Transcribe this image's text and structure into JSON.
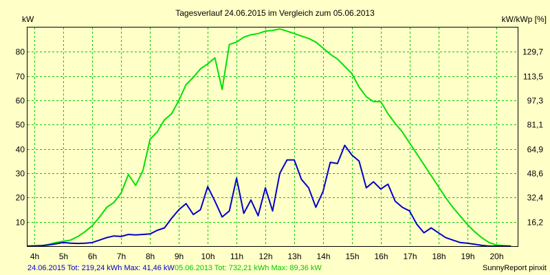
{
  "chart_data": {
    "type": "line",
    "title": "Tagesverlauf 24.06.2015 im Vergleich zum 05.06.2013",
    "ylabel_left": "kW",
    "ylabel_right": "kW/kWp [%]",
    "xlim": [
      3.75,
      20.75
    ],
    "ylim": [
      0,
      90
    ],
    "x_ticks": [
      {
        "x": 4,
        "label": "4h"
      },
      {
        "x": 5,
        "label": "5h"
      },
      {
        "x": 6,
        "label": "6h"
      },
      {
        "x": 7,
        "label": "7h"
      },
      {
        "x": 8,
        "label": "8h"
      },
      {
        "x": 9,
        "label": "9h"
      },
      {
        "x": 10,
        "label": "10h"
      },
      {
        "x": 11,
        "label": "11h"
      },
      {
        "x": 12,
        "label": "12h"
      },
      {
        "x": 13,
        "label": "13h"
      },
      {
        "x": 14,
        "label": "14h"
      },
      {
        "x": 15,
        "label": "15h"
      },
      {
        "x": 16,
        "label": "16h"
      },
      {
        "x": 17,
        "label": "17h"
      },
      {
        "x": 18,
        "label": "18h"
      },
      {
        "x": 19,
        "label": "19h"
      },
      {
        "x": 20,
        "label": "20h"
      }
    ],
    "y_ticks_left": [
      {
        "y": 10,
        "label": "10"
      },
      {
        "y": 20,
        "label": "20"
      },
      {
        "y": 30,
        "label": "30"
      },
      {
        "y": 40,
        "label": "40"
      },
      {
        "y": 50,
        "label": "50"
      },
      {
        "y": 60,
        "label": "60"
      },
      {
        "y": 70,
        "label": "70"
      },
      {
        "y": 80,
        "label": "80"
      }
    ],
    "y_ticks_right": [
      {
        "y": 10,
        "label": "16,2"
      },
      {
        "y": 20,
        "label": "32,4"
      },
      {
        "y": 30,
        "label": "48,6"
      },
      {
        "y": 40,
        "label": "64,9"
      },
      {
        "y": 50,
        "label": "81,1"
      },
      {
        "y": 60,
        "label": "97,3"
      },
      {
        "y": 70,
        "label": "113,5"
      },
      {
        "y": 80,
        "label": "129,7"
      }
    ],
    "grid": true,
    "series": [
      {
        "name": "05.06.2013",
        "color": "#00e000",
        "points": [
          [
            3.75,
            0
          ],
          [
            4.25,
            0.2
          ],
          [
            4.5,
            0.8
          ],
          [
            4.75,
            1.5
          ],
          [
            5.0,
            2
          ],
          [
            5.25,
            2.5
          ],
          [
            5.5,
            4
          ],
          [
            5.75,
            6
          ],
          [
            6.0,
            8.5
          ],
          [
            6.25,
            12
          ],
          [
            6.5,
            16
          ],
          [
            6.75,
            18
          ],
          [
            7.0,
            22
          ],
          [
            7.25,
            29.5
          ],
          [
            7.5,
            25
          ],
          [
            7.75,
            31
          ],
          [
            8.0,
            44
          ],
          [
            8.25,
            47
          ],
          [
            8.5,
            52
          ],
          [
            8.75,
            54.5
          ],
          [
            9.0,
            60
          ],
          [
            9.25,
            66.5
          ],
          [
            9.5,
            69.5
          ],
          [
            9.75,
            73
          ],
          [
            10.0,
            75
          ],
          [
            10.25,
            77.5
          ],
          [
            10.5,
            64.5
          ],
          [
            10.75,
            83
          ],
          [
            11.0,
            84
          ],
          [
            11.25,
            86
          ],
          [
            11.5,
            87
          ],
          [
            11.75,
            87.5
          ],
          [
            12.0,
            88.5
          ],
          [
            12.25,
            88.8
          ],
          [
            12.5,
            89.4
          ],
          [
            12.75,
            88.5
          ],
          [
            13.0,
            87.5
          ],
          [
            13.25,
            86.5
          ],
          [
            13.5,
            85.5
          ],
          [
            13.75,
            84
          ],
          [
            14.0,
            81.5
          ],
          [
            14.25,
            79
          ],
          [
            14.5,
            77
          ],
          [
            14.75,
            74
          ],
          [
            15.0,
            71
          ],
          [
            15.25,
            65.5
          ],
          [
            15.5,
            61.5
          ],
          [
            15.75,
            59.5
          ],
          [
            16.0,
            59.5
          ],
          [
            16.25,
            54.5
          ],
          [
            16.5,
            50.5
          ],
          [
            16.75,
            47
          ],
          [
            17.0,
            42.5
          ],
          [
            17.25,
            38
          ],
          [
            17.5,
            33.5
          ],
          [
            17.75,
            29
          ],
          [
            18.0,
            24.5
          ],
          [
            18.25,
            20
          ],
          [
            18.5,
            16
          ],
          [
            18.75,
            12.5
          ],
          [
            19.0,
            9
          ],
          [
            19.25,
            6
          ],
          [
            19.5,
            3.5
          ],
          [
            19.75,
            1.5
          ],
          [
            20.0,
            0.5
          ],
          [
            20.25,
            0.2
          ],
          [
            20.5,
            0
          ]
        ]
      },
      {
        "name": "24.06.2015",
        "color": "#0000c8",
        "points": [
          [
            3.75,
            0
          ],
          [
            4.25,
            0.2
          ],
          [
            4.5,
            0.5
          ],
          [
            4.75,
            1
          ],
          [
            5.0,
            1.5
          ],
          [
            5.25,
            1.2
          ],
          [
            5.5,
            1.1
          ],
          [
            5.75,
            1.2
          ],
          [
            6.0,
            1.5
          ],
          [
            6.25,
            2.5
          ],
          [
            6.5,
            3.5
          ],
          [
            6.75,
            4.2
          ],
          [
            7.0,
            4
          ],
          [
            7.25,
            4.8
          ],
          [
            7.5,
            4.6
          ],
          [
            7.75,
            4.8
          ],
          [
            8.0,
            5
          ],
          [
            8.25,
            6.5
          ],
          [
            8.5,
            7.5
          ],
          [
            8.75,
            11.5
          ],
          [
            9.0,
            15
          ],
          [
            9.25,
            17.5
          ],
          [
            9.5,
            13
          ],
          [
            9.75,
            15
          ],
          [
            10.0,
            24.5
          ],
          [
            10.25,
            18.5
          ],
          [
            10.5,
            12
          ],
          [
            10.75,
            14.5
          ],
          [
            11.0,
            28
          ],
          [
            11.25,
            13.5
          ],
          [
            11.5,
            19
          ],
          [
            11.75,
            12.5
          ],
          [
            12.0,
            24
          ],
          [
            12.25,
            14.5
          ],
          [
            12.5,
            30
          ],
          [
            12.75,
            35.5
          ],
          [
            13.0,
            35.5
          ],
          [
            13.25,
            27.5
          ],
          [
            13.5,
            24
          ],
          [
            13.75,
            16
          ],
          [
            14.0,
            22.5
          ],
          [
            14.25,
            34.5
          ],
          [
            14.5,
            34
          ],
          [
            14.75,
            41.5
          ],
          [
            15.0,
            37.5
          ],
          [
            15.25,
            35
          ],
          [
            15.5,
            24
          ],
          [
            15.75,
            26.5
          ],
          [
            16.0,
            23.5
          ],
          [
            16.25,
            25.5
          ],
          [
            16.5,
            18.5
          ],
          [
            16.75,
            16
          ],
          [
            17.0,
            14.5
          ],
          [
            17.25,
            9
          ],
          [
            17.5,
            5.5
          ],
          [
            17.75,
            7.5
          ],
          [
            18.0,
            5.5
          ],
          [
            18.25,
            3.5
          ],
          [
            18.5,
            2.5
          ],
          [
            18.75,
            1.5
          ],
          [
            19.0,
            1.2
          ],
          [
            19.25,
            0.8
          ],
          [
            19.5,
            0.3
          ],
          [
            19.75,
            0
          ],
          [
            20.5,
            0
          ]
        ]
      }
    ]
  },
  "footer": {
    "series1_text": "24.06.2015 Tot: 219,24 kWh Max: 41,46 kW",
    "series2_text": "05.06.2013 Tot: 732,21 kWh Max: 89,36 kW",
    "brand_text": "SunnyReport pinxit"
  },
  "colors": {
    "background": "#ffffc8",
    "grid": "#00c800",
    "series1": "#0000c8",
    "series2": "#00e000"
  }
}
